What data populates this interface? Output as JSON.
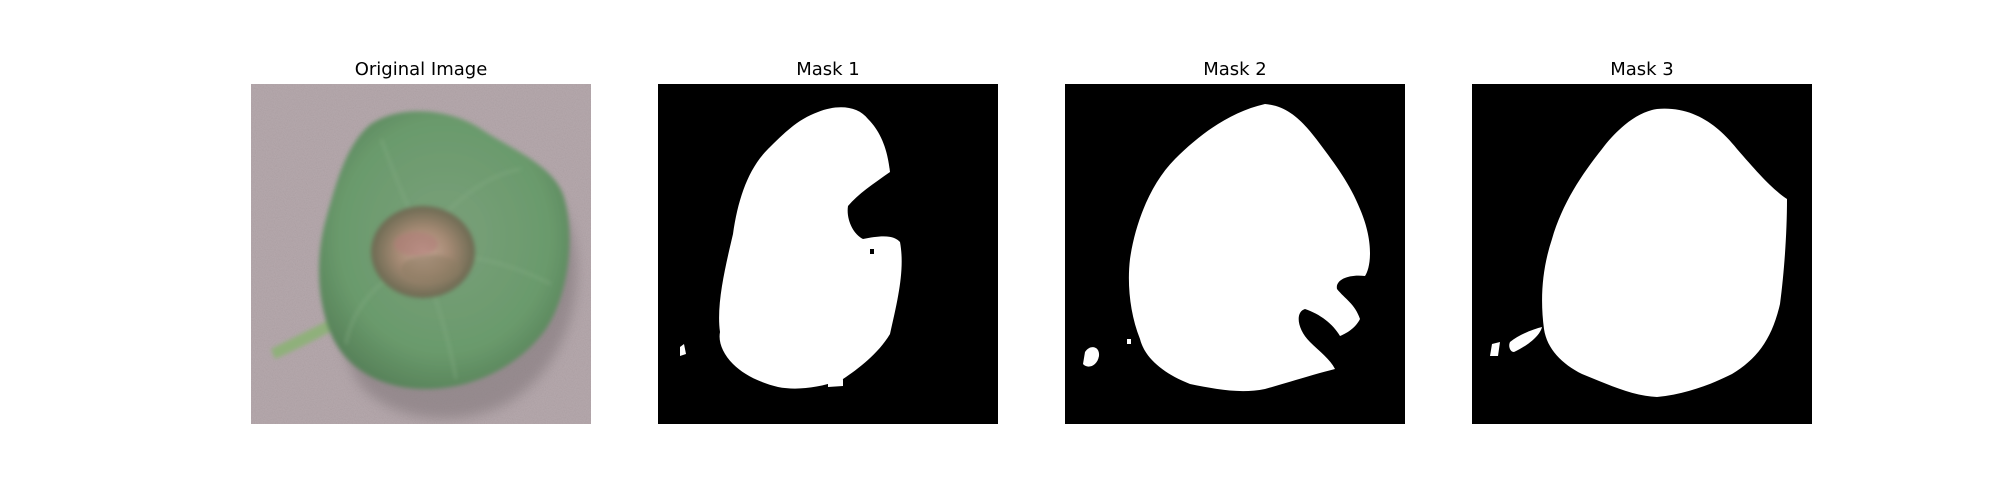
{
  "figure": {
    "panels": [
      {
        "title": "Original Image",
        "kind": "photo",
        "subject": "leaf"
      },
      {
        "title": "Mask 1",
        "kind": "mask",
        "foreground": "#ffffff",
        "background": "#000000"
      },
      {
        "title": "Mask 2",
        "kind": "mask",
        "foreground": "#ffffff",
        "background": "#000000"
      },
      {
        "title": "Mask 3",
        "kind": "mask",
        "foreground": "#ffffff",
        "background": "#000000"
      }
    ]
  }
}
